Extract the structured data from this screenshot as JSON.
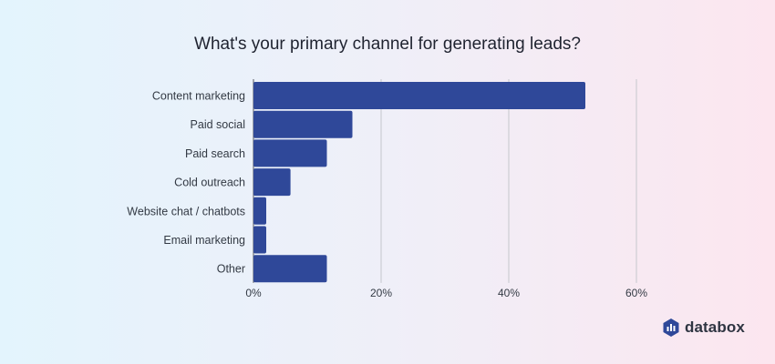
{
  "chart_data": {
    "type": "bar",
    "orientation": "horizontal",
    "title": "What's your primary channel for generating leads?",
    "categories": [
      "Content marketing",
      "Paid social",
      "Paid search",
      "Cold outreach",
      "Website chat / chatbots",
      "Email marketing",
      "Other"
    ],
    "values": [
      52,
      15.5,
      11.5,
      5.8,
      2,
      2,
      11.5
    ],
    "value_unit": "%",
    "xlim": [
      0,
      60
    ],
    "x_ticks": [
      "0%",
      "20%",
      "40%",
      "60%"
    ],
    "x_tick_values": [
      0,
      20,
      40,
      60
    ],
    "grid": "vertical",
    "bar_color": "#2f4899"
  },
  "logo": {
    "text": "databox",
    "icon": "databox-logo-icon",
    "color": "#2f4899"
  }
}
